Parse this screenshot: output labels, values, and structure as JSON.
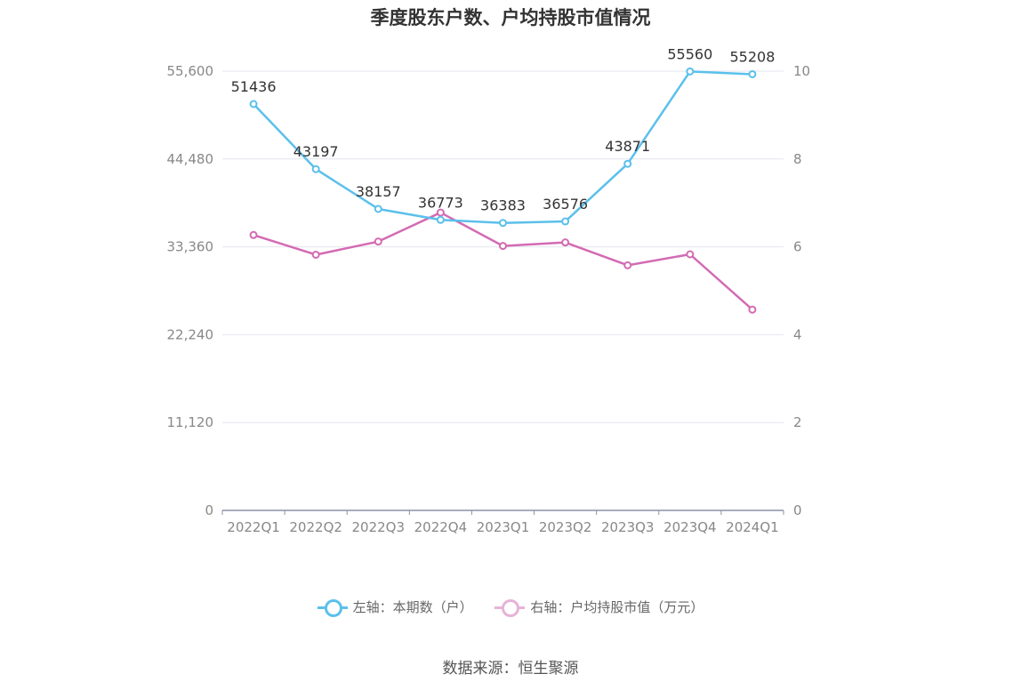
{
  "chart_data": {
    "type": "line",
    "title": "季度股东户数、户均持股市值情况",
    "categories": [
      "2022Q1",
      "2022Q2",
      "2022Q3",
      "2022Q4",
      "2023Q1",
      "2023Q2",
      "2023Q3",
      "2023Q4",
      "2024Q1"
    ],
    "series": [
      {
        "name": "左轴：本期数（户）",
        "axis": "left",
        "color": "#5bc0eb",
        "values": [
          51436,
          43197,
          38157,
          36773,
          36383,
          36576,
          43871,
          55560,
          55208
        ],
        "show_labels": true
      },
      {
        "name": "右轴：户均持股市值（万元）",
        "axis": "right",
        "color": "#d36bb3",
        "values": [
          6.27,
          5.82,
          6.12,
          6.78,
          6.02,
          6.1,
          5.58,
          5.83,
          4.57
        ],
        "show_labels": false
      }
    ],
    "left_axis": {
      "min": 0,
      "max": 55600,
      "ticks": [
        "0",
        "11,120",
        "22,240",
        "33,360",
        "44,480",
        "55,600"
      ]
    },
    "right_axis": {
      "min": 0,
      "max": 10,
      "ticks": [
        "0",
        "2",
        "4",
        "6",
        "8",
        "10"
      ]
    },
    "grid": true,
    "legend_position": "bottom"
  },
  "source_text": "数据来源：恒生聚源"
}
